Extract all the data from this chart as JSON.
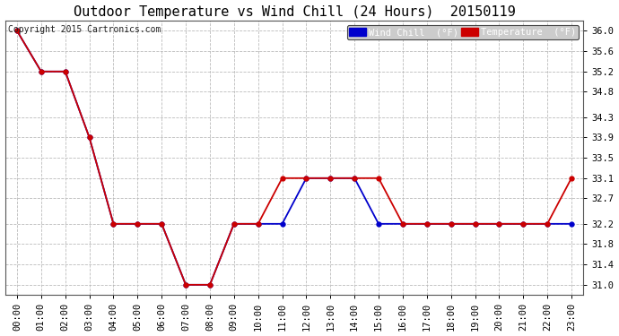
{
  "title": "Outdoor Temperature vs Wind Chill (24 Hours)  20150119",
  "copyright": "Copyright 2015 Cartronics.com",
  "background_color": "#ffffff",
  "plot_bg_color": "#ffffff",
  "grid_color": "#bbbbbb",
  "x_labels": [
    "00:00",
    "01:00",
    "02:00",
    "03:00",
    "04:00",
    "05:00",
    "06:00",
    "07:00",
    "08:00",
    "09:00",
    "10:00",
    "11:00",
    "12:00",
    "13:00",
    "14:00",
    "15:00",
    "16:00",
    "17:00",
    "18:00",
    "19:00",
    "20:00",
    "21:00",
    "22:00",
    "23:00"
  ],
  "ylim": [
    30.8,
    36.2
  ],
  "yticks": [
    31.0,
    31.4,
    31.8,
    32.2,
    32.7,
    33.1,
    33.5,
    33.9,
    34.3,
    34.8,
    35.2,
    35.6,
    36.0
  ],
  "temperature_color": "#cc0000",
  "windchill_color": "#0000cc",
  "temp_x": [
    0,
    1,
    2,
    3,
    4,
    5,
    6,
    7,
    8,
    9,
    10,
    11,
    12,
    13,
    14,
    15,
    16,
    17,
    18,
    19,
    20,
    21,
    22,
    23
  ],
  "temp_y": [
    36.0,
    35.2,
    35.2,
    33.9,
    32.2,
    32.2,
    32.2,
    31.0,
    31.0,
    32.2,
    32.2,
    33.1,
    33.1,
    33.1,
    33.1,
    33.1,
    32.2,
    32.2,
    32.2,
    32.2,
    32.2,
    32.2,
    32.2,
    33.1
  ],
  "wind_x": [
    0,
    1,
    2,
    3,
    4,
    5,
    6,
    7,
    8,
    9,
    10,
    11,
    12,
    13,
    14,
    15,
    16,
    17,
    18,
    19,
    20,
    21,
    22,
    23
  ],
  "wind_y": [
    36.0,
    35.2,
    35.2,
    33.9,
    32.2,
    32.2,
    32.2,
    31.0,
    31.0,
    32.2,
    32.2,
    32.2,
    33.1,
    33.1,
    33.1,
    32.2,
    32.2,
    32.2,
    32.2,
    32.2,
    32.2,
    32.2,
    32.2,
    32.2
  ],
  "marker_size": 3.5,
  "line_width": 1.3,
  "title_fontsize": 11,
  "tick_fontsize": 7.5,
  "copyright_fontsize": 7,
  "legend_wind_label": "Wind Chill  (°F)",
  "legend_temp_label": "Temperature  (°F)"
}
